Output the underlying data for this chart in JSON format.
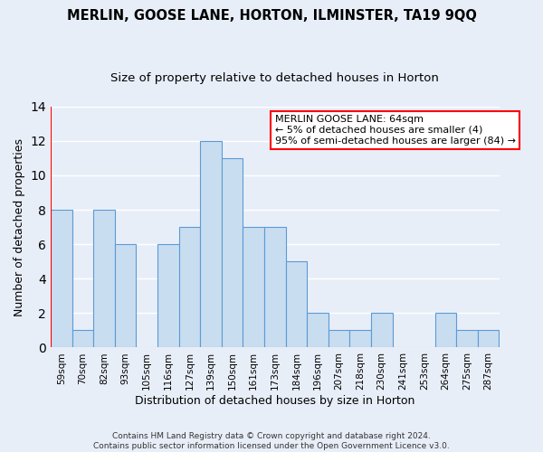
{
  "title": "MERLIN, GOOSE LANE, HORTON, ILMINSTER, TA19 9QQ",
  "subtitle": "Size of property relative to detached houses in Horton",
  "xlabel": "Distribution of detached houses by size in Horton",
  "ylabel": "Number of detached properties",
  "bar_labels": [
    "59sqm",
    "70sqm",
    "82sqm",
    "93sqm",
    "105sqm",
    "116sqm",
    "127sqm",
    "139sqm",
    "150sqm",
    "161sqm",
    "173sqm",
    "184sqm",
    "196sqm",
    "207sqm",
    "218sqm",
    "230sqm",
    "241sqm",
    "253sqm",
    "264sqm",
    "275sqm",
    "287sqm"
  ],
  "bar_values": [
    8,
    1,
    8,
    6,
    0,
    6,
    7,
    12,
    11,
    7,
    7,
    5,
    2,
    1,
    1,
    2,
    0,
    0,
    2,
    1,
    1
  ],
  "bar_color": "#c9ddf0",
  "bar_edge_color": "#5b9bd5",
  "annotation_line1": "MERLIN GOOSE LANE: 64sqm",
  "annotation_line2": "← 5% of detached houses are smaller (4)",
  "annotation_line3": "95% of semi-detached houses are larger (84) →",
  "annotation_box_edge_color": "red",
  "annotation_box_face_color": "white",
  "footer_line1": "Contains HM Land Registry data © Crown copyright and database right 2024.",
  "footer_line2": "Contains public sector information licensed under the Open Government Licence v3.0.",
  "ylim": [
    0,
    14
  ],
  "yticks": [
    0,
    2,
    4,
    6,
    8,
    10,
    12,
    14
  ],
  "bg_color": "#e8eef8",
  "plot_bg_color": "#e8eef8",
  "grid_color": "#ffffff",
  "title_fontsize": 10.5,
  "subtitle_fontsize": 9.5,
  "axis_label_fontsize": 9,
  "tick_fontsize": 7.5,
  "annotation_fontsize": 8
}
